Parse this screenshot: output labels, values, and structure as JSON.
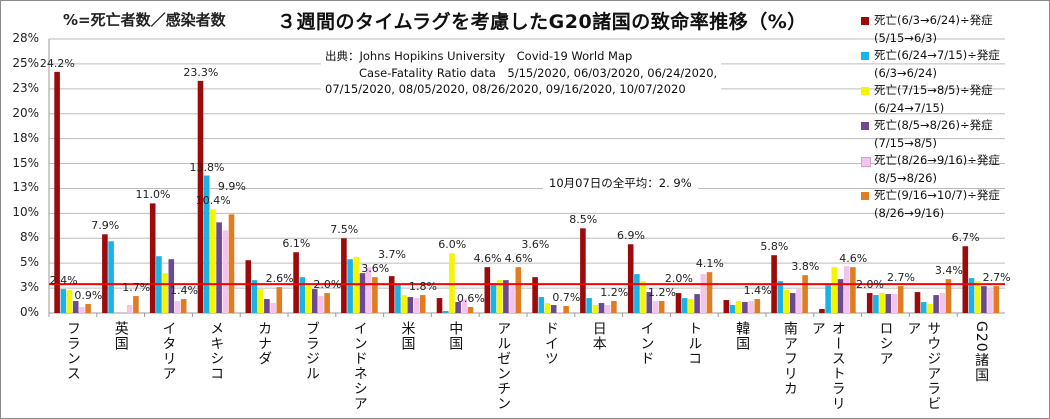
{
  "chart_data": {
    "type": "bar",
    "title": "３週間のタイムラグを考慮したG20諸国の致命率推移（%）",
    "subtitle": "%=死亡者数／感染者数",
    "source_lines": [
      "出典：Johns Hopikins University　Covid-19 World Map",
      "Case-Fatality Ratio data　5/15/2020, 06/03/2020, 06/24/2020,",
      "07/15/2020, 08/05/2020, 08/26/2020, 09/16/2020, 10/07/2020"
    ],
    "average_note": "10月07日の全平均：2. 9%",
    "average_value": 2.9,
    "average_color": "#ff0000",
    "ylim": [
      0,
      27.5
    ],
    "yticks": [
      0,
      2.5,
      5,
      7.5,
      10,
      12.5,
      15,
      17.5,
      20,
      22.5,
      25,
      27.5
    ],
    "ytick_labels": [
      "0%",
      "3%",
      "5%",
      "8%",
      "10%",
      "13%",
      "15%",
      "18%",
      "20%",
      "23%",
      "25%",
      "28%"
    ],
    "grid": true,
    "legend_position": "right",
    "categories": [
      "フランス",
      "英国",
      "イタリア",
      "メキシコ",
      "カナダ",
      "ブラジル",
      "インドネシア",
      "米国",
      "中国",
      "アルゼンチン",
      "ドイツ",
      "日本",
      "インド",
      "トルコ",
      "韓国",
      "南アフリカ",
      "オーストラリア",
      "ロシア",
      "サウジアラビア",
      "G20諸国"
    ],
    "series": [
      {
        "name": "死亡(6/3→6/24)÷発症 (5/15→6/3)",
        "color": "#9b0b0b",
        "values": [
          24.2,
          7.9,
          11.0,
          23.3,
          5.3,
          6.1,
          7.5,
          3.7,
          1.5,
          4.6,
          3.6,
          8.5,
          6.9,
          2.0,
          1.3,
          5.8,
          0.4,
          2.0,
          2.1,
          6.7
        ]
      },
      {
        "name": "死亡(6/24→7/15)÷発症 (6/3→6/24)",
        "color": "#19b3e6",
        "values": [
          2.4,
          7.2,
          5.7,
          13.8,
          3.3,
          3.6,
          5.4,
          2.9,
          0.2,
          3.0,
          1.6,
          1.5,
          3.9,
          1.5,
          0.8,
          3.2,
          2.8,
          1.8,
          1.1,
          3.5
        ]
      },
      {
        "name": "死亡(7/15→8/5)÷発症 (6/24→7/15)",
        "color": "#f5f500",
        "values": [
          2.3,
          0,
          4.0,
          10.4,
          2.4,
          2.7,
          5.6,
          1.8,
          6.0,
          3.3,
          1.0,
          0.8,
          3.2,
          1.4,
          1.2,
          2.3,
          4.6,
          2.0,
          0.9,
          3.2
        ]
      },
      {
        "name": "死亡(8/5→8/26)÷発症 (7/15→8/5)",
        "color": "#6b4a8f",
        "values": [
          1.2,
          0,
          5.4,
          9.1,
          1.4,
          2.4,
          4.0,
          1.6,
          1.1,
          3.3,
          0.8,
          1.0,
          2.1,
          1.9,
          1.1,
          2.0,
          3.4,
          1.9,
          1.8,
          2.7
        ]
      },
      {
        "name": "死亡(8/26→9/16)÷発症 (8/5→8/26)",
        "color": "#f3c4ee",
        "values": [
          0.6,
          0.8,
          1.2,
          8.3,
          1.0,
          1.7,
          4.6,
          1.5,
          1.4,
          2.7,
          0.1,
          0.8,
          1.2,
          3.9,
          1.2,
          2.4,
          4.7,
          1.9,
          2.0,
          2.4
        ]
      },
      {
        "name": "死亡(9/16→10/7)÷発症 (8/26→9/16)",
        "color": "#e07d22",
        "values": [
          0.9,
          1.7,
          1.4,
          9.9,
          2.6,
          2.0,
          3.6,
          1.8,
          0.6,
          4.6,
          0.7,
          1.2,
          1.2,
          4.1,
          1.4,
          3.8,
          4.6,
          2.7,
          3.4,
          2.7
        ]
      }
    ],
    "data_labels": [
      {
        "category": 0,
        "series": 0,
        "text": "24.2%"
      },
      {
        "category": 0,
        "series": 1,
        "text": "2.4%"
      },
      {
        "category": 0,
        "series": 5,
        "text": "0.9%"
      },
      {
        "category": 1,
        "series": 0,
        "text": "7.9%"
      },
      {
        "category": 1,
        "series": 5,
        "text": "1.7%"
      },
      {
        "category": 2,
        "series": 0,
        "text": "11.0%"
      },
      {
        "category": 2,
        "series": 5,
        "text": "1.4%"
      },
      {
        "category": 3,
        "series": 0,
        "text": "23.3%"
      },
      {
        "category": 3,
        "series": 1,
        "text": "13.8%"
      },
      {
        "category": 3,
        "series": 2,
        "text": "10.4%"
      },
      {
        "category": 3,
        "series": 5,
        "text": "9.9%"
      },
      {
        "category": 4,
        "series": 5,
        "text": "2.6%"
      },
      {
        "category": 5,
        "series": 0,
        "text": "6.1%"
      },
      {
        "category": 5,
        "series": 5,
        "text": "2.0%"
      },
      {
        "category": 6,
        "series": 0,
        "text": "7.5%"
      },
      {
        "category": 6,
        "series": 5,
        "text": "3.6%"
      },
      {
        "category": 7,
        "series": 0,
        "text": "3.7%"
      },
      {
        "category": 7,
        "series": 5,
        "text": "1.8%"
      },
      {
        "category": 8,
        "series": 2,
        "text": "6.0%"
      },
      {
        "category": 8,
        "series": 5,
        "text": "0.6%"
      },
      {
        "category": 9,
        "series": 0,
        "text": "4.6%"
      },
      {
        "category": 9,
        "series": 5,
        "text": "4.6%"
      },
      {
        "category": 10,
        "series": 0,
        "text": "3.6%"
      },
      {
        "category": 10,
        "series": 5,
        "text": "0.7%"
      },
      {
        "category": 11,
        "series": 0,
        "text": "8.5%"
      },
      {
        "category": 11,
        "series": 5,
        "text": "1.2%"
      },
      {
        "category": 12,
        "series": 0,
        "text": "6.9%"
      },
      {
        "category": 12,
        "series": 5,
        "text": "1.2%"
      },
      {
        "category": 13,
        "series": 0,
        "text": "2.0%"
      },
      {
        "category": 13,
        "series": 5,
        "text": "4.1%"
      },
      {
        "category": 14,
        "series": 5,
        "text": "1.4%"
      },
      {
        "category": 15,
        "series": 0,
        "text": "5.8%"
      },
      {
        "category": 15,
        "series": 5,
        "text": "3.8%"
      },
      {
        "category": 16,
        "series": 5,
        "text": "4.6%"
      },
      {
        "category": 17,
        "series": 0,
        "text": "2.0%"
      },
      {
        "category": 17,
        "series": 5,
        "text": "2.7%"
      },
      {
        "category": 18,
        "series": 5,
        "text": "3.4%"
      },
      {
        "category": 19,
        "series": 0,
        "text": "6.7%"
      },
      {
        "category": 19,
        "series": 5,
        "text": "2.7%"
      }
    ]
  },
  "legend": {
    "items": [
      {
        "line1": "死亡(6/3→6/24)÷発症",
        "line2": "(5/15→6/3)"
      },
      {
        "line1": "死亡(6/24→7/15)÷発症",
        "line2": "(6/3→6/24)"
      },
      {
        "line1": "死亡(7/15→8/5)÷発症",
        "line2": "(6/24→7/15)"
      },
      {
        "line1": "死亡(8/5→8/26)÷発症",
        "line2": "(7/15→8/5)"
      },
      {
        "line1": "死亡(8/26→9/16)÷発症",
        "line2": "(8/5→8/26)"
      },
      {
        "line1": "死亡(9/16→10/7)÷発症",
        "line2": "(8/26→9/16)"
      }
    ]
  }
}
